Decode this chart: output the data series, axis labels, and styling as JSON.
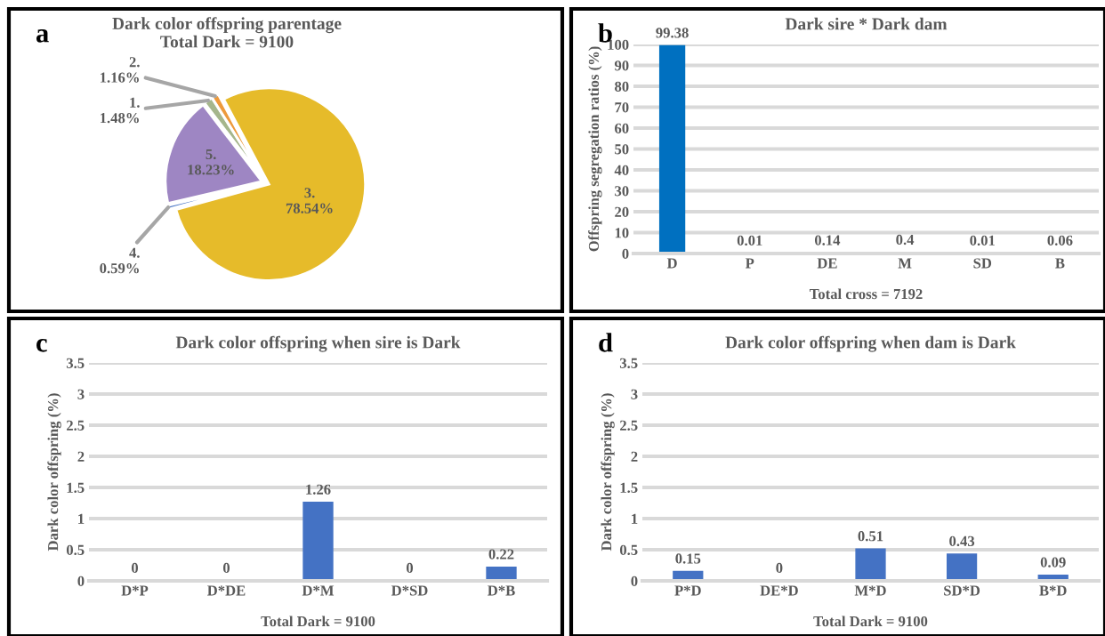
{
  "chart_data": [
    {
      "type": "pie",
      "title": "Dark color offspring parentage",
      "subtitle": "Total Dark = 9100",
      "annotations": [
        "a"
      ],
      "categories": [
        "3.",
        "4.",
        "5.",
        "1.",
        "2."
      ],
      "values": [
        78.54,
        0.59,
        18.23,
        1.48,
        1.16
      ],
      "value_labels": [
        "78.54%",
        "0.59%",
        "18.23%",
        "1.48%",
        "1.16%"
      ],
      "colors": [
        "#e6bb2a",
        "#4472c4",
        "#9e86c3",
        "#a5b68c",
        "#ed9a3c"
      ]
    },
    {
      "type": "bar",
      "title": "Dark sire * Dark dam",
      "xlabel": "Total cross = 7192",
      "ylabel": "Offspring segregation ratios (%)",
      "annotations": [
        "b"
      ],
      "categories": [
        "D",
        "P",
        "DE",
        "M",
        "SD",
        "B"
      ],
      "values": [
        99.38,
        0.01,
        0.14,
        0.4,
        0.01,
        0.06
      ],
      "color": "#0070c0",
      "ylim": [
        0,
        100
      ],
      "yticks": [
        0,
        10,
        20,
        30,
        40,
        50,
        60,
        70,
        80,
        90,
        100
      ],
      "grid": "y",
      "data_labels": true
    },
    {
      "type": "bar",
      "title": "Dark color offspring when sire is Dark",
      "xlabel": "Total Dark = 9100",
      "ylabel": "Dark color offspring (%)",
      "annotations": [
        "c"
      ],
      "categories": [
        "D*P",
        "D*DE",
        "D*M",
        "D*SD",
        "D*B"
      ],
      "values": [
        0,
        0,
        1.26,
        0,
        0.22
      ],
      "color": "#4472c4",
      "ylim": [
        0,
        3.5
      ],
      "yticks": [
        0,
        0.5,
        1,
        1.5,
        2,
        2.5,
        3,
        3.5
      ],
      "grid": "y",
      "data_labels": true
    },
    {
      "type": "bar",
      "title": "Dark color offspring when dam is Dark",
      "xlabel": "Total Dark = 9100",
      "ylabel": "Dark color offspring (%)",
      "annotations": [
        "d"
      ],
      "categories": [
        "P*D",
        "DE*D",
        "M*D",
        "SD*D",
        "B*D"
      ],
      "values": [
        0.15,
        0,
        0.51,
        0.43,
        0.09
      ],
      "color": "#4472c4",
      "ylim": [
        0,
        3.5
      ],
      "yticks": [
        0,
        0.5,
        1,
        1.5,
        2,
        2.5,
        3,
        3.5
      ],
      "grid": "y",
      "data_labels": true
    }
  ]
}
